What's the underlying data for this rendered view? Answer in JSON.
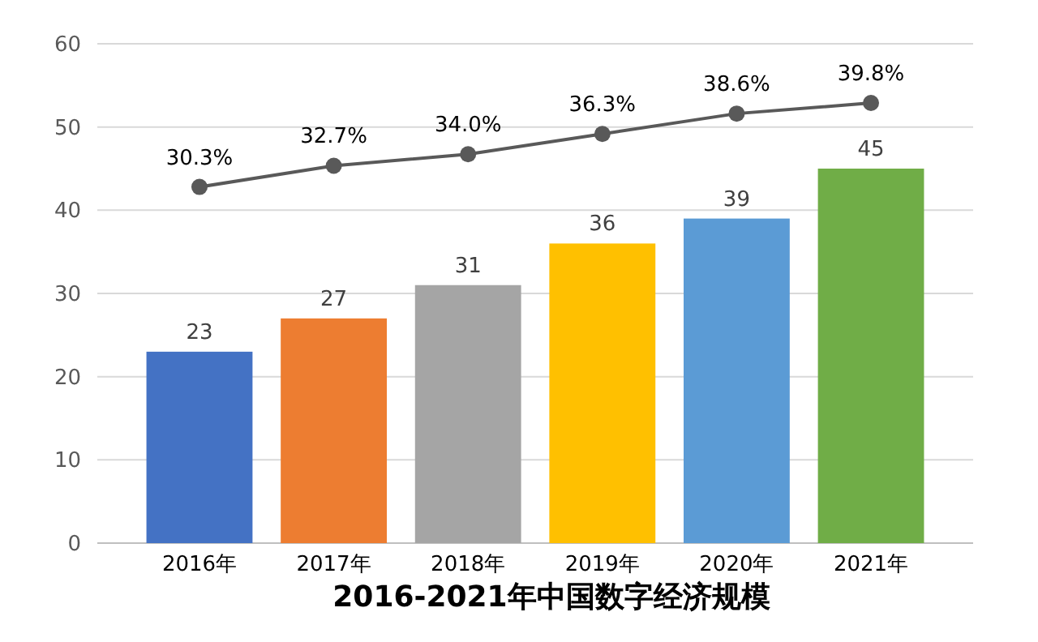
{
  "chart_data": {
    "type": "bar",
    "title": "2016-2021年中国数字经济规模",
    "categories": [
      "2016年",
      "2017年",
      "2018年",
      "2019年",
      "2020年",
      "2021年"
    ],
    "series": [
      {
        "values": [
          23,
          27,
          31,
          36,
          39,
          45
        ],
        "colors": [
          "#4472c4",
          "#ed7d31",
          "#a5a5a5",
          "#ffc000",
          "#5b9bd5",
          "#70ad47"
        ],
        "value_labels": [
          "23",
          "27",
          "31",
          "36",
          "39",
          "45"
        ]
      },
      {
        "type": "line",
        "axis": "y2",
        "color": "#595959",
        "values": [
          30.3,
          32.7,
          34.0,
          36.3,
          38.6,
          39.8
        ],
        "value_labels": [
          "30.3%",
          "32.7%",
          "34.0%",
          "36.3%",
          "38.6%",
          "39.8%"
        ]
      }
    ],
    "ylim": [
      0,
      60
    ],
    "yticks": [
      0,
      10,
      20,
      30,
      40,
      50,
      60
    ],
    "y2lim": [
      -10,
      46.5
    ],
    "tick_labels": "xy",
    "grid": "y",
    "marker": "circle"
  }
}
